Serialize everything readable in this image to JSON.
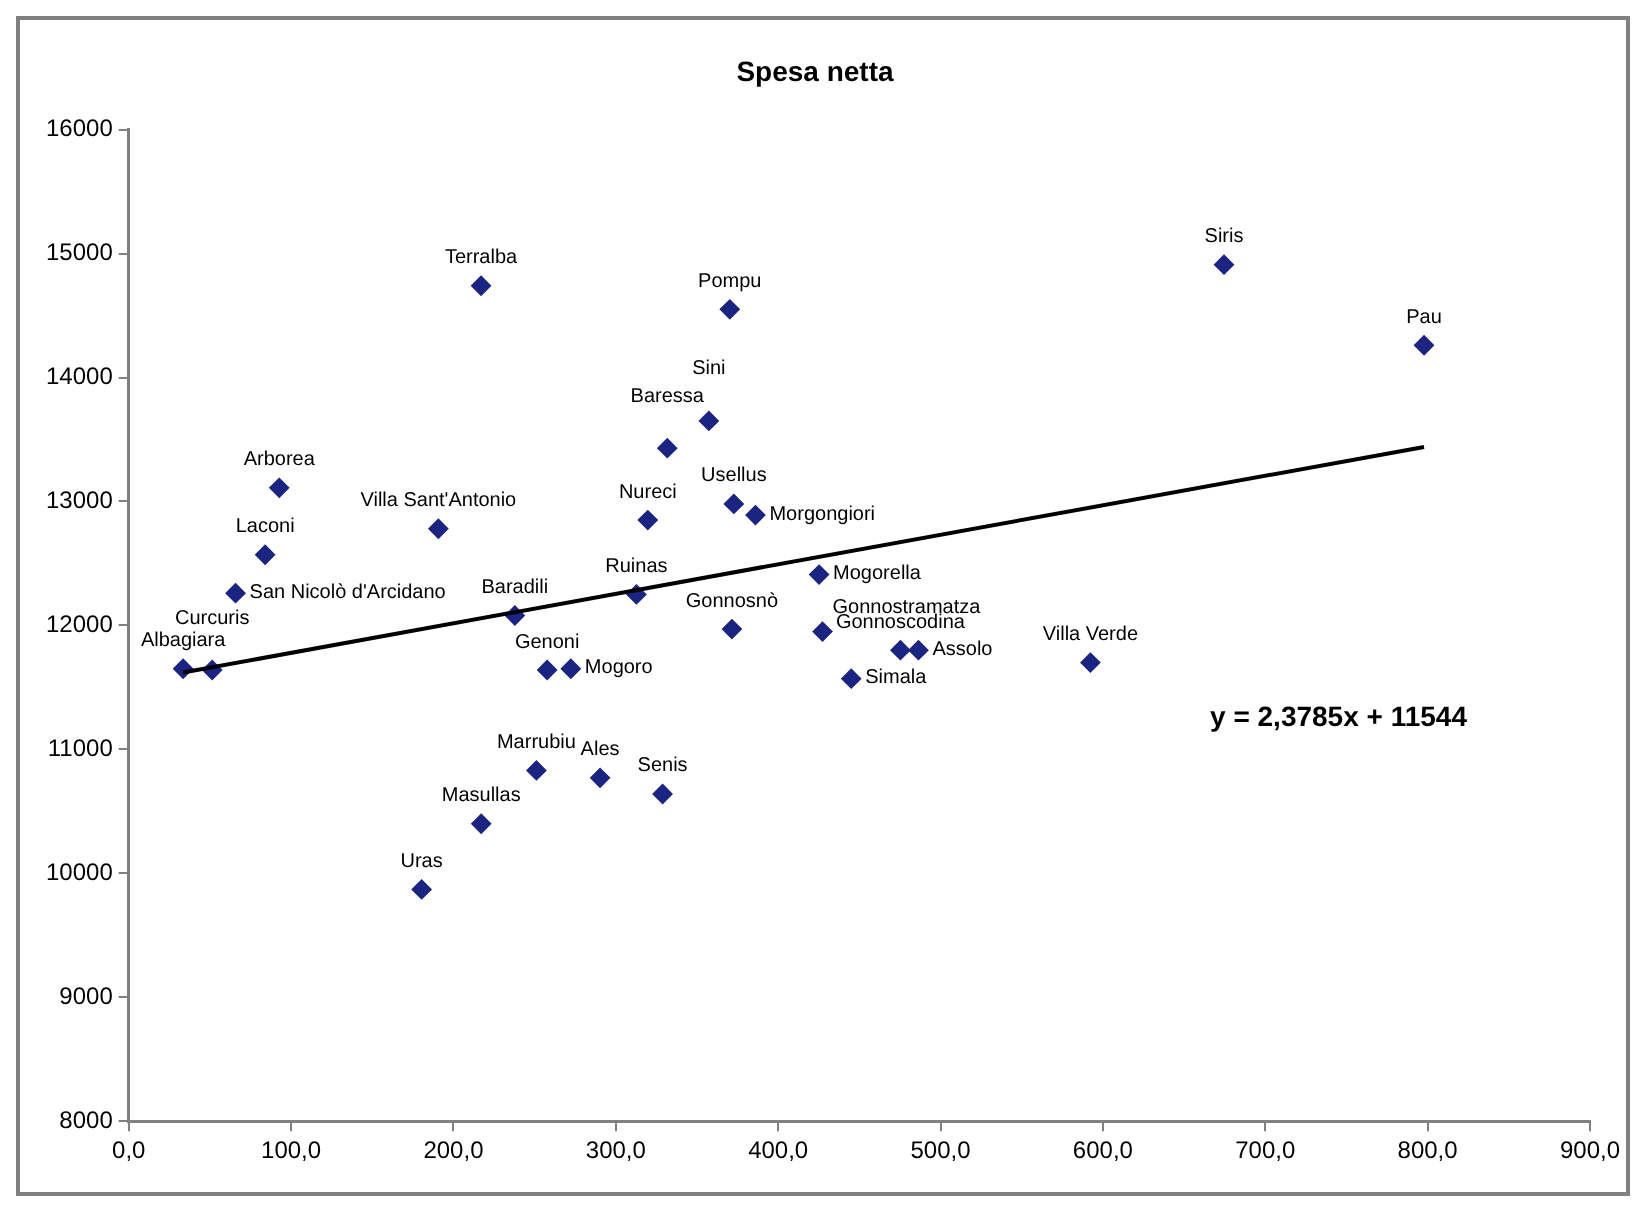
{
  "chart_data": {
    "type": "scatter",
    "title": "Spesa netta",
    "marker": "diamond",
    "grid": false,
    "legend": false,
    "xlim": [
      0,
      900
    ],
    "xticks": [
      {
        "value": 0,
        "label": "0,0"
      },
      {
        "value": 100,
        "label": "100,0"
      },
      {
        "value": 200,
        "label": "200,0"
      },
      {
        "value": 300,
        "label": "300,0"
      },
      {
        "value": 400,
        "label": "400,0"
      },
      {
        "value": 500,
        "label": "500,0"
      },
      {
        "value": 600,
        "label": "600,0"
      },
      {
        "value": 700,
        "label": "700,0"
      },
      {
        "value": 800,
        "label": "800,0"
      },
      {
        "value": 900,
        "label": "900,0"
      }
    ],
    "ylim": [
      8000,
      16000
    ],
    "yticks": [
      8000,
      9000,
      10000,
      11000,
      12000,
      13000,
      14000,
      15000,
      16000
    ],
    "series": [
      {
        "color": "#1c2481",
        "x": [
          33.5,
          51.4,
          65.8,
          84,
          92.7,
          190.7,
          217,
          237.8,
          257.7,
          272.3,
          312.7,
          319.7,
          331.7,
          357.3,
          370.2,
          372.7,
          371.5,
          386,
          425.2,
          427.3,
          445,
          475.3,
          486.4,
          592.3,
          674.6,
          797.8,
          251.1,
          290.3,
          328.8,
          217.1,
          180.4
        ],
        "values": [
          11650,
          11640,
          12260,
          12570,
          13110,
          12780,
          14740,
          12080,
          11640,
          11650,
          12250,
          12850,
          13430,
          13650,
          14550,
          12980,
          11970,
          12890,
          12410,
          11950,
          11570,
          11800,
          11800,
          11700,
          14910,
          14260,
          10830,
          10770,
          10640,
          10400,
          9870
        ]
      },
      {
        "type": "line",
        "color": "#000000",
        "marker": "none",
        "line_style": "solid",
        "x": [
          33.5,
          797.8
        ],
        "values": [
          11620,
          13440
        ]
      }
    ],
    "annotations": [
      {
        "text": "Albagiara",
        "x": 33.5,
        "y": 11650
      },
      {
        "text": "Curcuris",
        "x": 51.4,
        "y": 11640
      },
      {
        "text": "San Nicolò d'Arcidano",
        "x": 65.8,
        "y": 12260
      },
      {
        "text": "Laconi",
        "x": 84,
        "y": 12570
      },
      {
        "text": "Arborea",
        "x": 92.7,
        "y": 13110
      },
      {
        "text": "Villa Sant'Antonio",
        "x": 190.7,
        "y": 12780
      },
      {
        "text": "Terralba",
        "x": 217,
        "y": 14740
      },
      {
        "text": "Baradili",
        "x": 237.8,
        "y": 12080
      },
      {
        "text": "Genoni",
        "x": 257.7,
        "y": 11640
      },
      {
        "text": "Mogoro",
        "x": 272.3,
        "y": 11650
      },
      {
        "text": "Ruinas",
        "x": 312.7,
        "y": 12250
      },
      {
        "text": "Nureci",
        "x": 319.7,
        "y": 12850
      },
      {
        "text": "Baressa",
        "x": 331.7,
        "y": 13430
      },
      {
        "text": "Sini",
        "x": 357.3,
        "y": 13650
      },
      {
        "text": "Pompu",
        "x": 370.2,
        "y": 14550
      },
      {
        "text": "Usellus",
        "x": 372.7,
        "y": 12980
      },
      {
        "text": "Gonnosnò",
        "x": 371.5,
        "y": 11970
      },
      {
        "text": "Morgongiori",
        "x": 386,
        "y": 12890
      },
      {
        "text": "Mogorella",
        "x": 425.2,
        "y": 12410
      },
      {
        "text": "Gonnostramatza",
        "x": 427.3,
        "y": 11950
      },
      {
        "text": "Simala",
        "x": 445,
        "y": 11570
      },
      {
        "text": "Gonnoscodina",
        "x": 475.3,
        "y": 11800
      },
      {
        "text": "Assolo",
        "x": 486.4,
        "y": 11800
      },
      {
        "text": "Villa Verde",
        "x": 592.3,
        "y": 11700
      },
      {
        "text": "Siris",
        "x": 674.6,
        "y": 14910
      },
      {
        "text": "Pau",
        "x": 797.8,
        "y": 14260
      },
      {
        "text": "Marrubiu",
        "x": 251.1,
        "y": 10830
      },
      {
        "text": "Ales",
        "x": 290.3,
        "y": 10770
      },
      {
        "text": "Senis",
        "x": 328.8,
        "y": 10640
      },
      {
        "text": "Masullas",
        "x": 217.1,
        "y": 10400
      },
      {
        "text": "Uras",
        "x": 180.4,
        "y": 9870
      },
      "y = 2,3785x + 11544"
    ]
  }
}
